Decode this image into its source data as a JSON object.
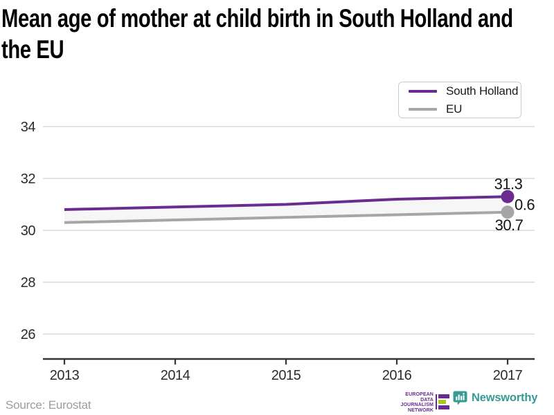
{
  "title": {
    "line1": "Mean age of mother at child birth in South Holland and",
    "line2": "the EU",
    "full": "Mean age of mother at child birth in South Holland and the EU"
  },
  "chart_data": {
    "type": "line",
    "title": "Mean age of mother at child birth in South Holland and the EU",
    "x": [
      2013,
      2014,
      2015,
      2016,
      2017
    ],
    "xticks": [
      "2013",
      "2014",
      "2015",
      "2016",
      "2017"
    ],
    "series": [
      {
        "name": "South Holland",
        "color": "#6a2d8f",
        "values": [
          30.8,
          30.9,
          31.0,
          31.2,
          31.3
        ],
        "end_label": "31.3",
        "end_marker": true
      },
      {
        "name": "EU",
        "color": "#a6a6a6",
        "values": [
          30.3,
          30.4,
          30.5,
          30.6,
          30.7
        ],
        "end_label": "30.7",
        "end_marker": true
      }
    ],
    "diff_label": "0.6",
    "yticks": [
      26,
      28,
      30,
      32,
      34
    ],
    "ylim": [
      25,
      34.5
    ],
    "grid": "horizontal",
    "legend_position": "top-right",
    "area_fill_between_series": true,
    "colors": {
      "grid": "#dadada",
      "axis": "#333333",
      "tick_label": "#2b2b2b",
      "end_label": "#141414",
      "area_fill": "#f6f6f6"
    }
  },
  "footer": {
    "source": "Source: Eurostat",
    "edjn": {
      "lines": [
        "EUROPEAN",
        "DATA JOURNALISM",
        "NETWORK"
      ],
      "purple": "#662d91",
      "lime": "#a9c919"
    },
    "newsworthy": {
      "label": "Newsworthy",
      "teal": "#379b93"
    }
  }
}
